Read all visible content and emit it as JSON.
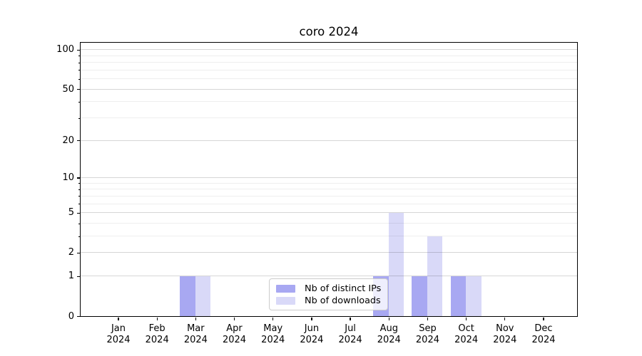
{
  "chart_data": {
    "type": "bar",
    "title": "coro 2024",
    "categories": [
      "Jan",
      "Feb",
      "Mar",
      "Apr",
      "May",
      "Jun",
      "Jul",
      "Aug",
      "Sep",
      "Oct",
      "Nov",
      "Dec"
    ],
    "x_tick_second_line": "2024",
    "series": [
      {
        "name": "Nb of distinct IPs",
        "color": "#a8a8f2",
        "values": [
          0,
          0,
          1,
          0,
          0,
          0,
          0,
          1,
          1,
          1,
          0,
          0
        ]
      },
      {
        "name": "Nb of downloads",
        "color": "#d9d9f8",
        "values": [
          0,
          0,
          1,
          0,
          0,
          0,
          0,
          5,
          3,
          1,
          0,
          0
        ]
      }
    ],
    "y_axis": {
      "scale": "log1p",
      "major_ticks": [
        0,
        1,
        2,
        5,
        10,
        20,
        50,
        100
      ],
      "minor_ticks": [
        3,
        4,
        6,
        7,
        8,
        9,
        30,
        40,
        60,
        70,
        80,
        90
      ],
      "ylim": [
        0,
        113
      ]
    },
    "xlabel": "",
    "ylabel": "",
    "grid": "on",
    "legend_position": "lower center"
  },
  "style": {
    "grid_major_color": "#d6d6d6",
    "grid_minor_color": "#eeeeee",
    "axis_color": "#000000",
    "legend_border_color": "#cccccc",
    "background": "#ffffff"
  }
}
